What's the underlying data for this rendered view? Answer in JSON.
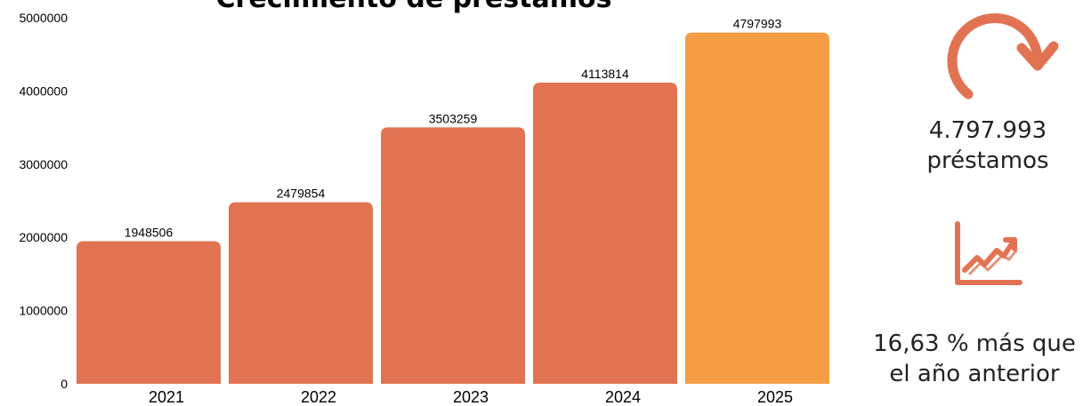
{
  "chart_data": {
    "type": "bar",
    "title": "Crecimiento de préstamos",
    "categories": [
      "2021",
      "2022",
      "2023",
      "2024",
      "2025"
    ],
    "values": [
      1948506,
      2479854,
      3503259,
      4113814,
      4797993
    ],
    "data_labels": [
      "1948506",
      "2479854",
      "3503259",
      "4113814",
      "4797993"
    ],
    "yticks": [
      "0",
      "1000000",
      "2000000",
      "3000000",
      "4000000",
      "5000000"
    ],
    "ylim": [
      0,
      5000000
    ],
    "grid": false,
    "colors": [
      "#E27352",
      "#E27352",
      "#E27352",
      "#E27352",
      "#F49D45"
    ]
  },
  "side_panel": {
    "total_value": "4.797.993",
    "total_unit": "préstamos",
    "growth_line1": "16,63 % más que",
    "growth_line2": "el año anterior",
    "icon_color": "#E27352",
    "icons": [
      "refresh-arrow-icon",
      "trending-up-chart-icon"
    ]
  }
}
